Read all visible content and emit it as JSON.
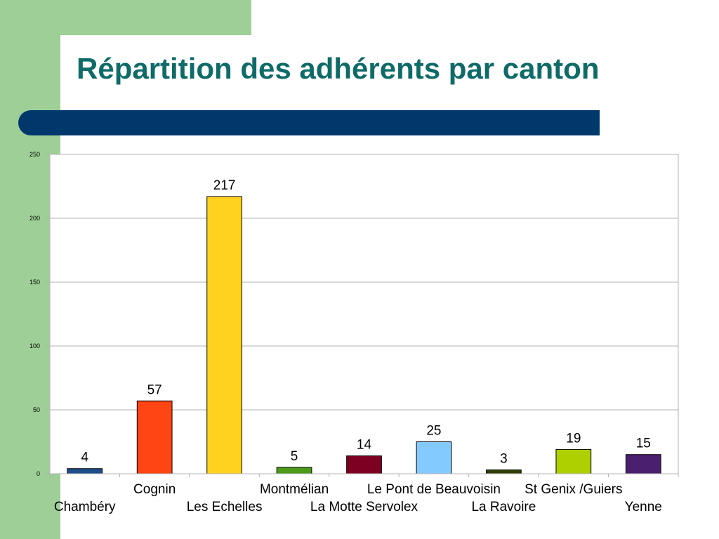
{
  "slide": {
    "title": "Répartition des adhérents par canton",
    "colors": {
      "background_green": "#9dcf96",
      "title_text": "#0f6b68",
      "title_bar": "#00386b"
    }
  },
  "chart_data": {
    "type": "bar",
    "title": "",
    "xlabel": "",
    "ylabel": "",
    "categories": [
      "Chambéry",
      "Cognin",
      "Les Echelles",
      "Montmélian",
      "La Motte Servolex",
      "Le Pont de Beauvoisin",
      "La Ravoire",
      "St Genix /Guiers",
      "Yenne"
    ],
    "values": [
      4,
      57,
      217,
      5,
      14,
      25,
      3,
      19,
      15
    ],
    "colors": [
      "#1f4e8c",
      "#ff4513",
      "#ffd21f",
      "#4c9a1a",
      "#7e0021",
      "#83caff",
      "#314004",
      "#aecf00",
      "#4b1f6f"
    ],
    "ylim": [
      0,
      250
    ],
    "yticks": [
      0,
      50,
      100,
      150,
      200,
      250
    ],
    "grid": true,
    "legend": "none",
    "data_labels": true,
    "label_rows": "staggered"
  }
}
